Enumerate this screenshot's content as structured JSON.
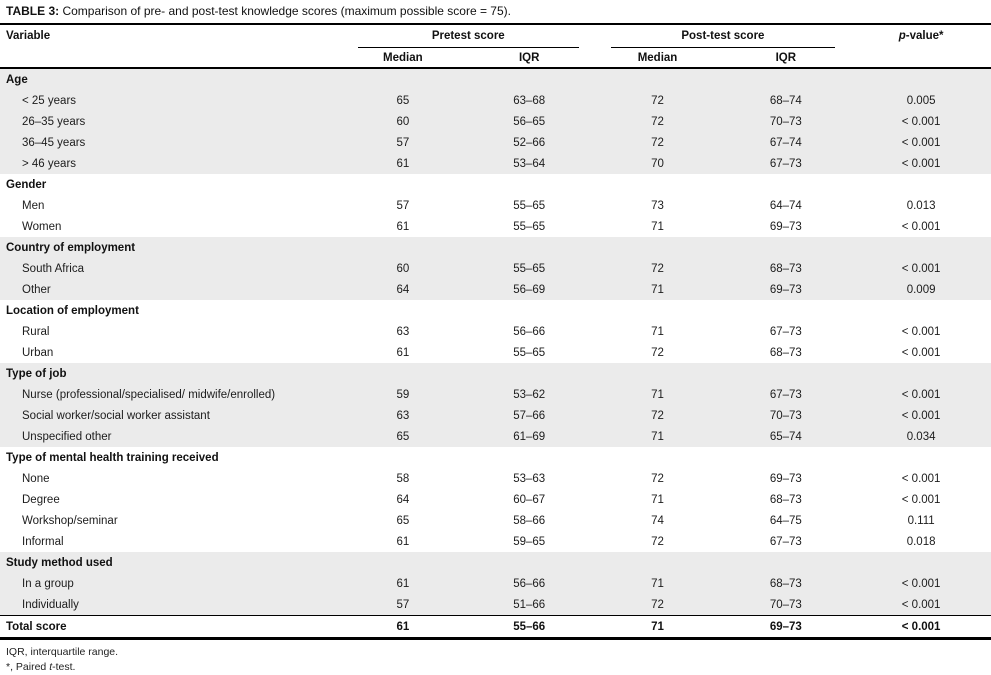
{
  "title": {
    "label": "TABLE 3:",
    "text": " Comparison of pre- and post-test knowledge scores (maximum possible score = 75)."
  },
  "header": {
    "variable": "Variable",
    "pretest_group": "Pretest score",
    "posttest_group": "Post-test score",
    "median": "Median",
    "iqr": "IQR",
    "pvalue_p": "p",
    "pvalue_rest": "-value*"
  },
  "colors": {
    "shaded_row": "#ebebeb",
    "rule": "#000000"
  },
  "sections": [
    {
      "name": "Age",
      "shaded": true,
      "rows": [
        {
          "label": "< 25 years",
          "pre_median": "65",
          "pre_iqr": "63–68",
          "post_median": "72",
          "post_iqr": "68–74",
          "p": "0.005"
        },
        {
          "label": "26–35 years",
          "pre_median": "60",
          "pre_iqr": "56–65",
          "post_median": "72",
          "post_iqr": "70–73",
          "p": "< 0.001"
        },
        {
          "label": "36–45 years",
          "pre_median": "57",
          "pre_iqr": "52–66",
          "post_median": "72",
          "post_iqr": "67–74",
          "p": "< 0.001"
        },
        {
          "label": "> 46 years",
          "pre_median": "61",
          "pre_iqr": "53–64",
          "post_median": "70",
          "post_iqr": "67–73",
          "p": "< 0.001"
        }
      ]
    },
    {
      "name": "Gender",
      "shaded": false,
      "rows": [
        {
          "label": "Men",
          "pre_median": "57",
          "pre_iqr": "55–65",
          "post_median": "73",
          "post_iqr": "64–74",
          "p": "0.013"
        },
        {
          "label": "Women",
          "pre_median": "61",
          "pre_iqr": "55–65",
          "post_median": "71",
          "post_iqr": "69–73",
          "p": "< 0.001"
        }
      ]
    },
    {
      "name": "Country of employment",
      "shaded": true,
      "rows": [
        {
          "label": "South Africa",
          "pre_median": "60",
          "pre_iqr": "55–65",
          "post_median": "72",
          "post_iqr": "68–73",
          "p": "< 0.001"
        },
        {
          "label": "Other",
          "pre_median": "64",
          "pre_iqr": "56–69",
          "post_median": "71",
          "post_iqr": "69–73",
          "p": "0.009"
        }
      ]
    },
    {
      "name": "Location of employment",
      "shaded": false,
      "rows": [
        {
          "label": "Rural",
          "pre_median": "63",
          "pre_iqr": "56–66",
          "post_median": "71",
          "post_iqr": "67–73",
          "p": "< 0.001"
        },
        {
          "label": "Urban",
          "pre_median": "61",
          "pre_iqr": "55–65",
          "post_median": "72",
          "post_iqr": "68–73",
          "p": "< 0.001"
        }
      ]
    },
    {
      "name": "Type of job",
      "shaded": true,
      "rows": [
        {
          "label": "Nurse (professional/specialised/ midwife/enrolled)",
          "pre_median": "59",
          "pre_iqr": "53–62",
          "post_median": "71",
          "post_iqr": "67–73",
          "p": "< 0.001"
        },
        {
          "label": "Social worker/social worker assistant",
          "pre_median": "63",
          "pre_iqr": "57–66",
          "post_median": "72",
          "post_iqr": "70–73",
          "p": "< 0.001"
        },
        {
          "label": "Unspecified other",
          "pre_median": "65",
          "pre_iqr": "61–69",
          "post_median": "71",
          "post_iqr": "65–74",
          "p": "0.034"
        }
      ]
    },
    {
      "name": "Type of mental health training received",
      "shaded": false,
      "rows": [
        {
          "label": "None",
          "pre_median": "58",
          "pre_iqr": "53–63",
          "post_median": "72",
          "post_iqr": "69–73",
          "p": "< 0.001"
        },
        {
          "label": "Degree",
          "pre_median": "64",
          "pre_iqr": "60–67",
          "post_median": "71",
          "post_iqr": "68–73",
          "p": "< 0.001"
        },
        {
          "label": "Workshop/seminar",
          "pre_median": "65",
          "pre_iqr": "58–66",
          "post_median": "74",
          "post_iqr": "64–75",
          "p": "0.111"
        },
        {
          "label": "Informal",
          "pre_median": "61",
          "pre_iqr": "59–65",
          "post_median": "72",
          "post_iqr": "67–73",
          "p": "0.018"
        }
      ]
    },
    {
      "name": "Study method used",
      "shaded": true,
      "rows": [
        {
          "label": "In a group",
          "pre_median": "61",
          "pre_iqr": "56–66",
          "post_median": "71",
          "post_iqr": "68–73",
          "p": "< 0.001"
        },
        {
          "label": "Individually",
          "pre_median": "57",
          "pre_iqr": "51–66",
          "post_median": "72",
          "post_iqr": "70–73",
          "p": "< 0.001"
        }
      ]
    }
  ],
  "total": {
    "label": "Total score",
    "pre_median": "61",
    "pre_iqr": "55–66",
    "post_median": "71",
    "post_iqr": "69–73",
    "p": "< 0.001"
  },
  "footnotes": {
    "iqr": "IQR, interquartile range.",
    "paired_pre": "*, Paired ",
    "paired_italic": "t",
    "paired_post": "-test."
  }
}
